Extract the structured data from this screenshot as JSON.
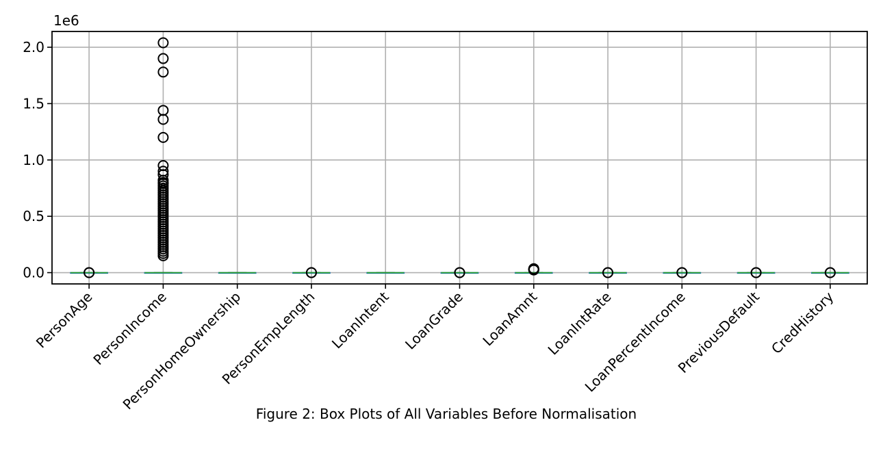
{
  "chart_data": {
    "type": "box",
    "y_offset_text": "1e6",
    "y_tick_values": [
      0.0,
      0.5,
      1.0,
      1.5,
      2.0
    ],
    "y_tick_labels": [
      "0.0",
      "0.5",
      "1.0",
      "1.5",
      "2.0"
    ],
    "ylim": [
      -0.1,
      2.14
    ],
    "grid": true,
    "caption": "Figure 2: Box Plots of All Variables Before Normalisation",
    "colors": {
      "box": "#1f77b4",
      "median": "#2ca02c",
      "whisker": "#000000",
      "flier": "#000000",
      "grid": "#b0b0b0"
    },
    "categories": [
      "PersonAge",
      "PersonIncome",
      "PersonHomeOwnership",
      "PersonEmpLength",
      "LoanIntent",
      "LoanGrade",
      "LoanAmnt",
      "LoanIntRate",
      "LoanPercentIncome",
      "PreviousDefault",
      "CredHistory"
    ],
    "boxes": [
      {
        "q1": 2.3e-05,
        "median": 2.6e-05,
        "q3": 3e-05,
        "whislo": 2e-05,
        "whishi": 4e-05,
        "fliers": [
          0.0,
          0.0001
        ]
      },
      {
        "q1": 0.039,
        "median": 0.055,
        "q3": 0.079,
        "whislo": 0.004,
        "whishi": 0.14,
        "fliers": [
          0.15,
          0.17,
          0.19,
          0.21,
          0.23,
          0.25,
          0.27,
          0.29,
          0.31,
          0.33,
          0.35,
          0.37,
          0.39,
          0.41,
          0.43,
          0.45,
          0.47,
          0.49,
          0.51,
          0.53,
          0.55,
          0.57,
          0.59,
          0.61,
          0.63,
          0.65,
          0.67,
          0.69,
          0.71,
          0.73,
          0.75,
          0.77,
          0.79,
          0.8,
          0.82,
          0.87,
          0.9,
          0.95,
          1.2,
          1.36,
          1.44,
          1.78,
          1.9,
          2.04
        ]
      },
      {
        "q1": 0.0,
        "median": 0.0,
        "q3": 3e-06,
        "whislo": 0.0,
        "whishi": 3e-06,
        "fliers": []
      },
      {
        "q1": 2e-06,
        "median": 4e-06,
        "q3": 7e-06,
        "whislo": 0.0,
        "whishi": 1.4e-05,
        "fliers": [
          0.0,
          0.0001
        ]
      },
      {
        "q1": 1e-06,
        "median": 2e-06,
        "q3": 4e-06,
        "whislo": 0.0,
        "whishi": 5e-06,
        "fliers": []
      },
      {
        "q1": 0.0,
        "median": 1e-06,
        "q3": 2e-06,
        "whislo": 0.0,
        "whishi": 4e-06,
        "fliers": [
          0.0,
          0.0001
        ]
      },
      {
        "q1": 0.005,
        "median": 0.008,
        "q3": 0.0125,
        "whislo": 0.0005,
        "whishi": 0.023,
        "fliers": [
          0.024,
          0.026,
          0.028,
          0.03,
          0.032,
          0.035
        ]
      },
      {
        "q1": 8e-06,
        "median": 1.1e-05,
        "q3": 1.3e-05,
        "whislo": 5e-06,
        "whishi": 2e-05,
        "fliers": [
          0.0,
          0.0001
        ]
      },
      {
        "q1": 0.0,
        "median": 0.0,
        "q3": 0.0,
        "whislo": 0.0,
        "whishi": 0.0,
        "fliers": [
          0.0,
          0.0001
        ]
      },
      {
        "q1": 0.0,
        "median": 0.0,
        "q3": 1e-06,
        "whislo": 0.0,
        "whishi": 1e-06,
        "fliers": [
          0.0,
          0.0001
        ]
      },
      {
        "q1": 3e-06,
        "median": 4e-06,
        "q3": 8e-06,
        "whislo": 2e-06,
        "whishi": 1.5e-05,
        "fliers": [
          0.0,
          0.0001
        ]
      }
    ]
  }
}
